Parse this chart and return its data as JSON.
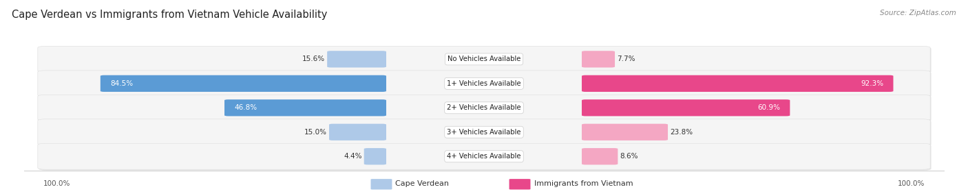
{
  "title": "Cape Verdean vs Immigrants from Vietnam Vehicle Availability",
  "source": "Source: ZipAtlas.com",
  "categories": [
    "No Vehicles Available",
    "1+ Vehicles Available",
    "2+ Vehicles Available",
    "3+ Vehicles Available",
    "4+ Vehicles Available"
  ],
  "cape_verdean": [
    15.6,
    84.5,
    46.8,
    15.0,
    4.4
  ],
  "vietnam": [
    7.7,
    92.3,
    60.9,
    23.8,
    8.6
  ],
  "max_val": 100.0,
  "color_cv_dark": "#5b9bd5",
  "color_cv_light": "#aec9e8",
  "color_vn_dark": "#e8478a",
  "color_vn_light": "#f4a7c3",
  "bg_row": "#f0f0f0",
  "bg_fig": "#ffffff",
  "legend_cv": "Cape Verdean",
  "legend_vn": "Immigrants from Vietnam",
  "threshold": 30
}
